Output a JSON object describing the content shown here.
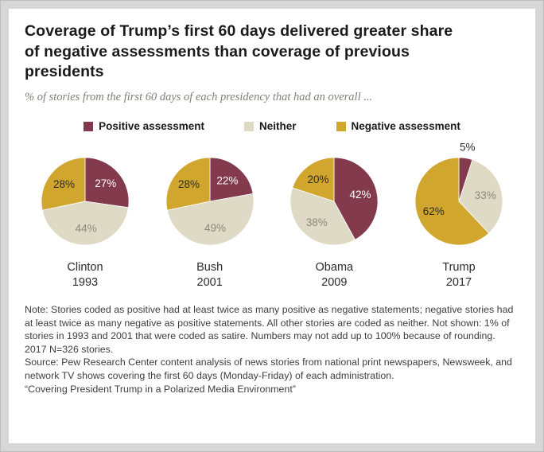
{
  "card": {
    "title": "Coverage of Trump’s first 60 days delivered greater share of negative assessments than coverage of previous presidents",
    "subtitle": "% of stories from the first 60 days of each presidency that had an overall ...",
    "note": "Note: Stories coded as positive had at least twice as many positive as negative statements; negative stories had at least twice as many negative as positive statements. All other stories are coded as neither. Not shown: 1% of stories in 1993 and 2001 that were coded as satire. Numbers may not add up to 100% because of rounding. 2017 N=326 stories.",
    "source": "Source: Pew Research Center content analysis of news stories from national print newspapers, Newsweek, and network TV shows covering the first 60 days (Monday-Friday) of each administration.",
    "credit": "“Covering President Trump in a Polarized Media Environment”"
  },
  "chart_data": {
    "type": "pie",
    "title": "Coverage of Trump’s first 60 days delivered greater share of negative assessments than coverage of previous presidents",
    "subtitle": "% of stories from the first 60 days of each presidency that had an overall ...",
    "legend": [
      {
        "label": "Positive assessment",
        "color": "#833a4d"
      },
      {
        "label": "Neither",
        "color": "#dfdac5"
      },
      {
        "label": "Negative assessment",
        "color": "#d1a62f"
      }
    ],
    "slice_label_colors": [
      "#ffffff",
      "#8b897e",
      "#2e2b22"
    ],
    "outside_label_color": "#2b2b2b",
    "layout": {
      "legend_position": "top",
      "start_angle": "12 o'clock",
      "direction": "clockwise"
    },
    "pies": [
      {
        "president": "Clinton",
        "year": "1993",
        "values": [
          27,
          44,
          28
        ]
      },
      {
        "president": "Bush",
        "year": "2001",
        "values": [
          22,
          49,
          28
        ]
      },
      {
        "president": "Obama",
        "year": "2009",
        "values": [
          42,
          38,
          20
        ]
      },
      {
        "president": "Trump",
        "year": "2017",
        "values": [
          5,
          33,
          62
        ]
      }
    ]
  }
}
